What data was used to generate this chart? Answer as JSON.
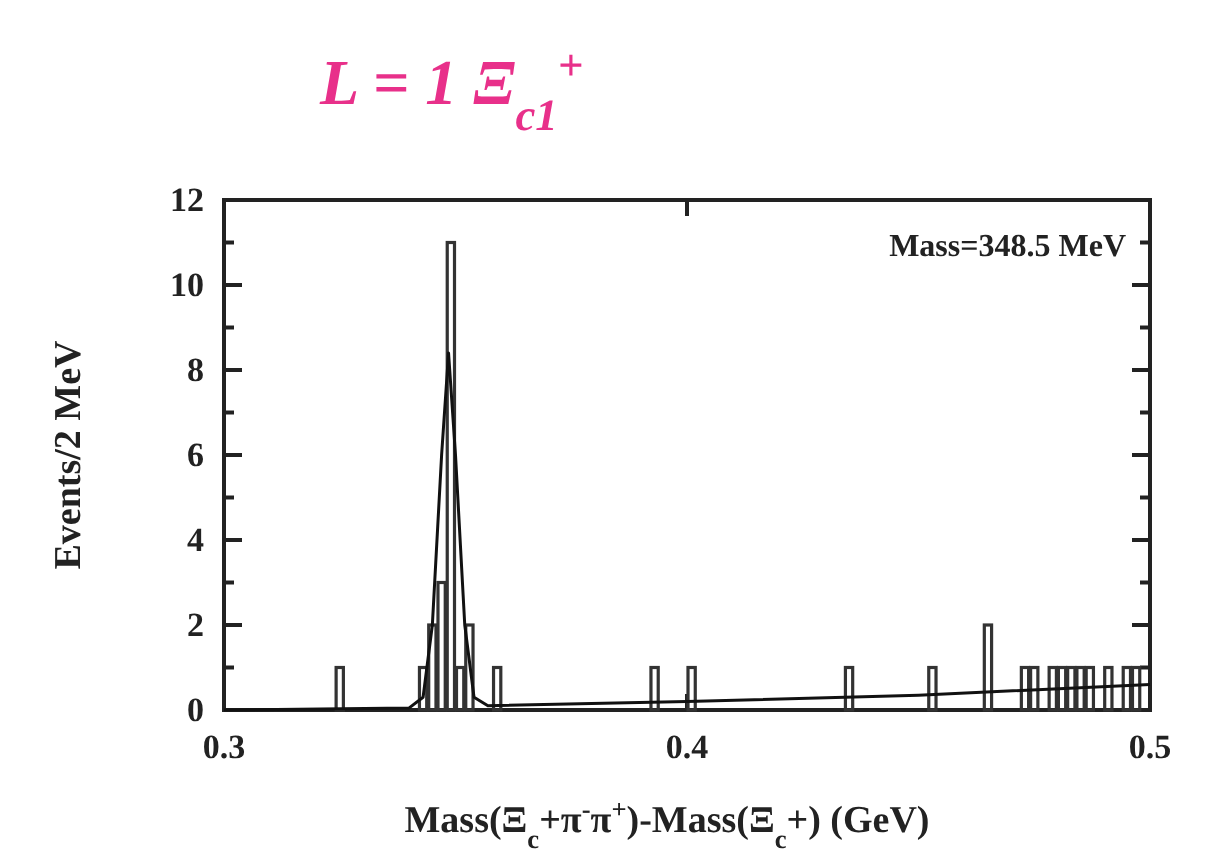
{
  "chart_data": {
    "type": "histogram",
    "title": "L = 1  Ξ$_{c1}$$^{+}$",
    "xlabel": "Mass(Ξ$_{c}$+π$^{-}$π$^{+}$)-Mass(Ξ$_{c}$+) (GeV)",
    "ylabel": "Events/2 MeV",
    "annotations": [
      "Mass=348.5 MeV"
    ],
    "bins": [
      0.3,
      0.302,
      0.304,
      0.306,
      0.308,
      0.31,
      0.312,
      0.314,
      0.316,
      0.318,
      0.32,
      0.322,
      0.324,
      0.326,
      0.328,
      0.33,
      0.332,
      0.334,
      0.336,
      0.338,
      0.34,
      0.342,
      0.344,
      0.346,
      0.348,
      0.35,
      0.352,
      0.354,
      0.356,
      0.358,
      0.36,
      0.362,
      0.364,
      0.366,
      0.368,
      0.37,
      0.372,
      0.374,
      0.376,
      0.378,
      0.38,
      0.382,
      0.384,
      0.386,
      0.388,
      0.39,
      0.392,
      0.394,
      0.396,
      0.398,
      0.4,
      0.402,
      0.404,
      0.406,
      0.408,
      0.41,
      0.412,
      0.414,
      0.416,
      0.418,
      0.42,
      0.422,
      0.424,
      0.426,
      0.428,
      0.43,
      0.432,
      0.434,
      0.436,
      0.438,
      0.44,
      0.442,
      0.444,
      0.446,
      0.448,
      0.45,
      0.452,
      0.454,
      0.456,
      0.458,
      0.46,
      0.462,
      0.464,
      0.466,
      0.468,
      0.47,
      0.472,
      0.474,
      0.476,
      0.478,
      0.48,
      0.482,
      0.484,
      0.486,
      0.488,
      0.49,
      0.492,
      0.494,
      0.496,
      0.498,
      0.5
    ],
    "series": [
      {
        "color": "#333333",
        "values": [
          0,
          0,
          0,
          0,
          0,
          0,
          0,
          0,
          0,
          0,
          0,
          0,
          1,
          0,
          0,
          0,
          0,
          0,
          0,
          0,
          0,
          1,
          2,
          3,
          11,
          1,
          2,
          0,
          0,
          1,
          0,
          0,
          0,
          0,
          0,
          0,
          0,
          0,
          0,
          0,
          0,
          0,
          0,
          0,
          0,
          0,
          1,
          0,
          0,
          0,
          1,
          0,
          0,
          0,
          0,
          0,
          0,
          0,
          0,
          0,
          0,
          0,
          0,
          0,
          0,
          0,
          0,
          1,
          0,
          0,
          0,
          0,
          0,
          0,
          0,
          0,
          1,
          0,
          0,
          0,
          0,
          0,
          2,
          0,
          0,
          0,
          1,
          1,
          0,
          1,
          1,
          1,
          1,
          1,
          0,
          1,
          0,
          1,
          1,
          0
        ]
      },
      {
        "type": "line",
        "color": "#111111",
        "x": [
          0.3,
          0.34,
          0.343,
          0.345,
          0.347,
          0.3485,
          0.35,
          0.352,
          0.354,
          0.357,
          0.4,
          0.45,
          0.5
        ],
        "values": [
          0,
          0.05,
          0.3,
          2,
          6,
          8.4,
          6,
          2,
          0.3,
          0.1,
          0.2,
          0.35,
          0.6
        ]
      }
    ],
    "xlim": [
      0.3,
      0.5
    ],
    "xticks": [
      0.3,
      {
        "value": 0.4,
        "label": "0.4"
      },
      0.5
    ],
    "ylim": [
      0,
      12
    ],
    "yticks": [
      0,
      {
        "value": 1,
        "label": null
      },
      2,
      {
        "value": 3,
        "label": null
      },
      4,
      {
        "value": 5,
        "label": null
      },
      6,
      {
        "value": 7,
        "label": null
      },
      8,
      {
        "value": 9,
        "label": null
      },
      10,
      {
        "value": 11,
        "label": null
      },
      12
    ]
  }
}
